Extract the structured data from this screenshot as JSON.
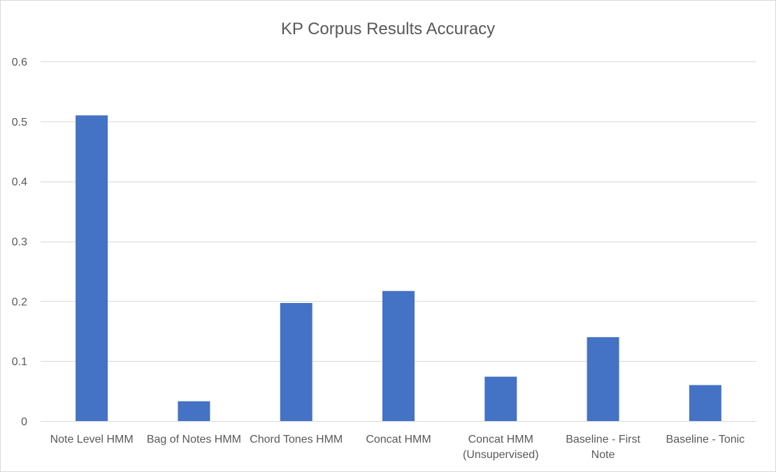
{
  "chart_data": {
    "type": "bar",
    "title": "KP Corpus Results Accuracy",
    "xlabel": "",
    "ylabel": "",
    "categories": [
      "Note Level HMM",
      "Bag of Notes HMM",
      "Chord Tones HMM",
      "Concat HMM",
      "Concat HMM (Unsupervised)",
      "Baseline - First Note",
      "Baseline - Tonic"
    ],
    "category_lines": [
      [
        "Note Level HMM"
      ],
      [
        "Bag of Notes HMM"
      ],
      [
        "Chord Tones HMM"
      ],
      [
        "Concat HMM"
      ],
      [
        "Concat HMM",
        "(Unsupervised)"
      ],
      [
        "Baseline - First",
        "Note"
      ],
      [
        "Baseline - Tonic"
      ]
    ],
    "values": [
      0.51,
      0.033,
      0.197,
      0.217,
      0.074,
      0.14,
      0.06
    ],
    "ylim": [
      0,
      0.6
    ],
    "yticks": [
      "0",
      "0.1",
      "0.2",
      "0.3",
      "0.4",
      "0.5",
      "0.6"
    ],
    "ytick_values": [
      0,
      0.1,
      0.2,
      0.3,
      0.4,
      0.5,
      0.6
    ],
    "grid": true,
    "legend": "none",
    "bar_color": "#4472c4"
  }
}
